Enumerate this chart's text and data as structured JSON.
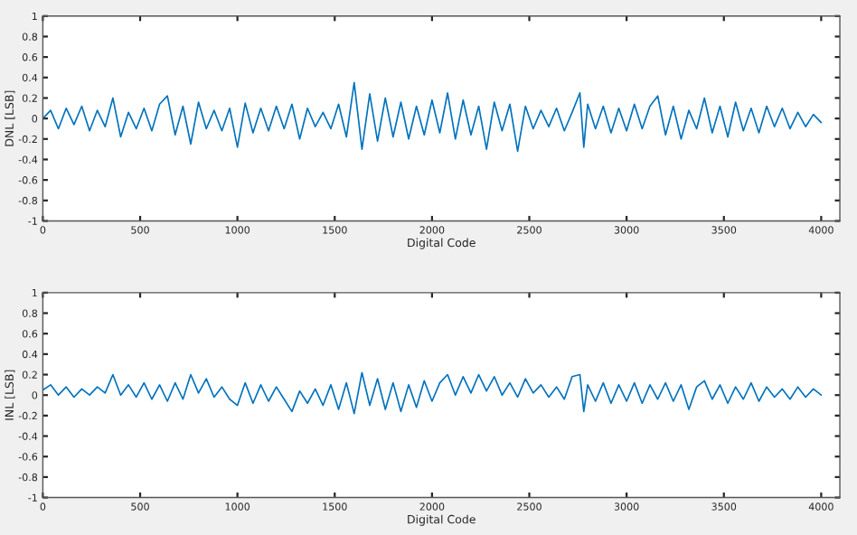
{
  "chart_data": [
    {
      "type": "line",
      "xlabel": "Digital Code",
      "ylabel": "DNL [LSB]",
      "xlim": [
        0,
        4096
      ],
      "ylim": [
        -1,
        1
      ],
      "xticks": [
        0,
        500,
        1000,
        1500,
        2000,
        2500,
        3000,
        3500,
        4000
      ],
      "yticks": [
        -1,
        -0.8,
        -0.6,
        -0.4,
        -0.2,
        0,
        0.2,
        0.4,
        0.6,
        0.8,
        1
      ],
      "grid": false,
      "legend": false,
      "x": [
        0,
        40,
        80,
        120,
        160,
        200,
        240,
        280,
        320,
        360,
        400,
        440,
        480,
        520,
        560,
        600,
        640,
        680,
        720,
        760,
        800,
        840,
        880,
        920,
        960,
        1000,
        1040,
        1080,
        1120,
        1160,
        1200,
        1240,
        1280,
        1320,
        1360,
        1400,
        1440,
        1480,
        1520,
        1560,
        1600,
        1640,
        1680,
        1720,
        1760,
        1800,
        1840,
        1880,
        1920,
        1960,
        2000,
        2040,
        2080,
        2120,
        2160,
        2200,
        2240,
        2280,
        2320,
        2360,
        2400,
        2440,
        2480,
        2520,
        2560,
        2600,
        2640,
        2680,
        2720,
        2760,
        2780,
        2800,
        2840,
        2880,
        2920,
        2960,
        3000,
        3040,
        3080,
        3120,
        3160,
        3200,
        3240,
        3280,
        3320,
        3360,
        3400,
        3440,
        3480,
        3520,
        3560,
        3600,
        3640,
        3680,
        3720,
        3760,
        3800,
        3840,
        3880,
        3920,
        3960,
        4000
      ],
      "series": [
        {
          "color": "#0072bd",
          "values": [
            0.0,
            0.08,
            -0.1,
            0.1,
            -0.06,
            0.12,
            -0.12,
            0.08,
            -0.08,
            0.2,
            -0.18,
            0.06,
            -0.1,
            0.1,
            -0.12,
            0.14,
            0.22,
            -0.16,
            0.12,
            -0.25,
            0.16,
            -0.1,
            0.08,
            -0.12,
            0.1,
            -0.28,
            0.15,
            -0.14,
            0.1,
            -0.12,
            0.12,
            -0.1,
            0.14,
            -0.2,
            0.1,
            -0.08,
            0.06,
            -0.1,
            0.14,
            -0.18,
            0.35,
            -0.3,
            0.24,
            -0.22,
            0.2,
            -0.18,
            0.16,
            -0.2,
            0.12,
            -0.16,
            0.18,
            -0.14,
            0.25,
            -0.2,
            0.18,
            -0.16,
            0.12,
            -0.3,
            0.16,
            -0.12,
            0.14,
            -0.32,
            0.12,
            -0.1,
            0.08,
            -0.08,
            0.1,
            -0.12,
            0.06,
            0.25,
            -0.28,
            0.14,
            -0.1,
            0.12,
            -0.14,
            0.1,
            -0.12,
            0.14,
            -0.1,
            0.12,
            0.22,
            -0.16,
            0.12,
            -0.2,
            0.08,
            -0.1,
            0.2,
            -0.14,
            0.12,
            -0.18,
            0.16,
            -0.12,
            0.1,
            -0.14,
            0.12,
            -0.08,
            0.1,
            -0.1,
            0.06,
            -0.08,
            0.04,
            -0.04
          ]
        }
      ]
    },
    {
      "type": "line",
      "xlabel": "Digital Code",
      "ylabel": "INL [LSB]",
      "xlim": [
        0,
        4096
      ],
      "ylim": [
        -1,
        1
      ],
      "xticks": [
        0,
        500,
        1000,
        1500,
        2000,
        2500,
        3000,
        3500,
        4000
      ],
      "yticks": [
        -1,
        -0.8,
        -0.6,
        -0.4,
        -0.2,
        0,
        0.2,
        0.4,
        0.6,
        0.8,
        1
      ],
      "grid": false,
      "legend": false,
      "x": [
        0,
        40,
        80,
        120,
        160,
        200,
        240,
        280,
        320,
        360,
        400,
        440,
        480,
        520,
        560,
        600,
        640,
        680,
        720,
        760,
        800,
        840,
        880,
        920,
        960,
        1000,
        1040,
        1080,
        1120,
        1160,
        1200,
        1240,
        1280,
        1320,
        1360,
        1400,
        1440,
        1480,
        1520,
        1560,
        1600,
        1640,
        1680,
        1720,
        1760,
        1800,
        1840,
        1880,
        1920,
        1960,
        2000,
        2040,
        2080,
        2120,
        2160,
        2200,
        2240,
        2280,
        2320,
        2360,
        2400,
        2440,
        2480,
        2520,
        2560,
        2600,
        2640,
        2680,
        2720,
        2760,
        2780,
        2800,
        2840,
        2880,
        2920,
        2960,
        3000,
        3040,
        3080,
        3120,
        3160,
        3200,
        3240,
        3280,
        3320,
        3360,
        3400,
        3440,
        3480,
        3520,
        3560,
        3600,
        3640,
        3680,
        3720,
        3760,
        3800,
        3840,
        3880,
        3920,
        3960,
        4000
      ],
      "series": [
        {
          "color": "#0072bd",
          "values": [
            0.05,
            0.1,
            0.0,
            0.08,
            -0.02,
            0.06,
            0.0,
            0.08,
            0.02,
            0.2,
            0.0,
            0.1,
            -0.02,
            0.12,
            -0.04,
            0.1,
            -0.06,
            0.12,
            -0.04,
            0.2,
            0.02,
            0.16,
            -0.02,
            0.08,
            -0.04,
            -0.1,
            0.12,
            -0.08,
            0.1,
            -0.06,
            0.08,
            -0.04,
            -0.16,
            0.04,
            -0.08,
            0.06,
            -0.1,
            0.1,
            -0.14,
            0.12,
            -0.18,
            0.22,
            -0.1,
            0.16,
            -0.14,
            0.12,
            -0.16,
            0.1,
            -0.12,
            0.14,
            -0.06,
            0.12,
            0.2,
            0.0,
            0.18,
            0.02,
            0.2,
            0.04,
            0.18,
            0.0,
            0.12,
            -0.02,
            0.16,
            0.02,
            0.1,
            -0.02,
            0.08,
            -0.04,
            0.18,
            0.2,
            -0.16,
            0.1,
            -0.06,
            0.12,
            -0.08,
            0.1,
            -0.06,
            0.12,
            -0.08,
            0.1,
            -0.04,
            0.12,
            -0.06,
            0.1,
            -0.14,
            0.08,
            0.14,
            -0.04,
            0.1,
            -0.08,
            0.08,
            -0.04,
            0.12,
            -0.06,
            0.08,
            -0.02,
            0.06,
            -0.04,
            0.08,
            -0.02,
            0.06,
            0.0
          ]
        }
      ]
    }
  ]
}
